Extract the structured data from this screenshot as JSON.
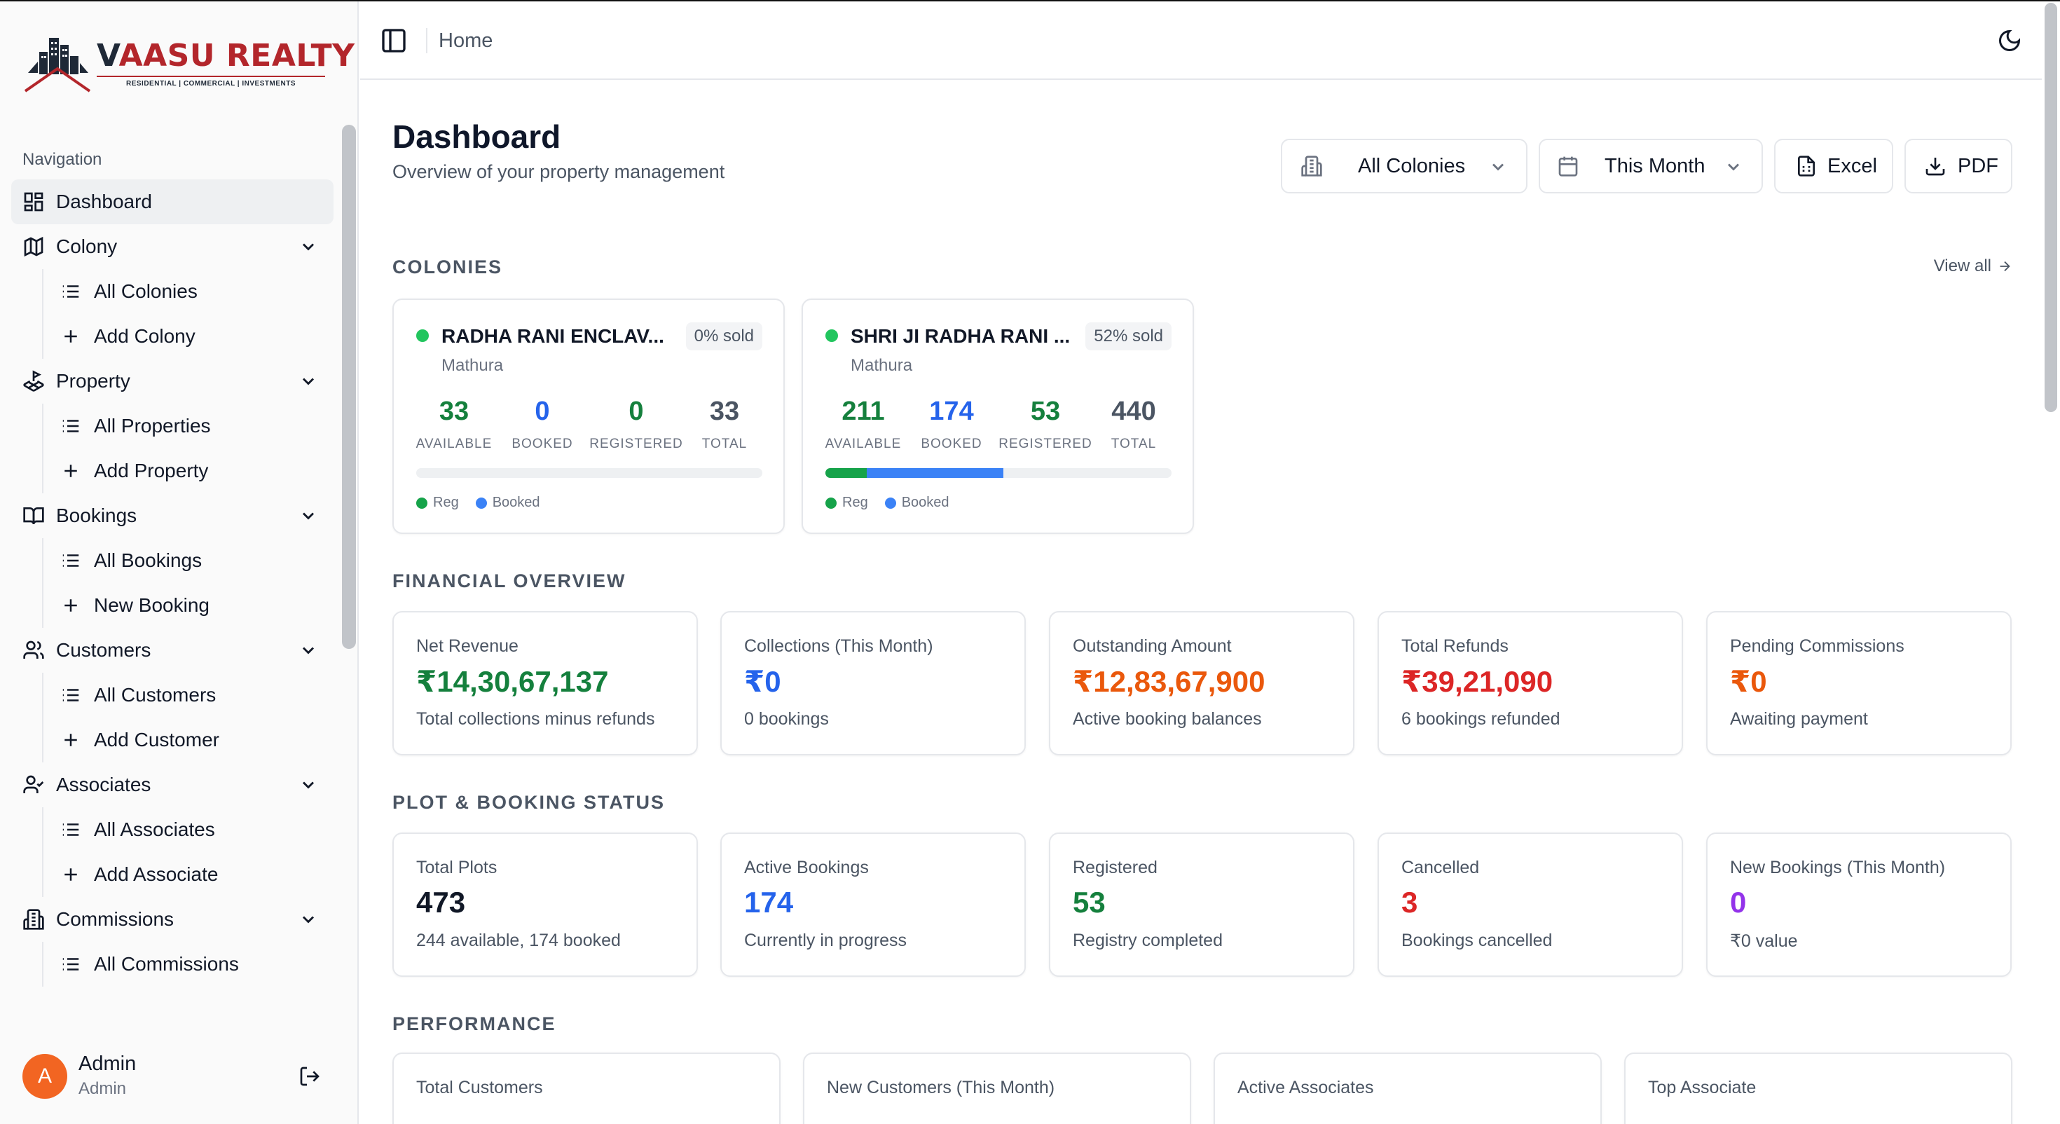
{
  "brand": {
    "name_v": "V",
    "name_rest": "AASU REALTY",
    "tagline": "RESIDENTIAL | COMMERCIAL | INVESTMENTS",
    "mark": "VA"
  },
  "sidebar": {
    "heading": "Navigation",
    "items": [
      {
        "label": "Dashboard",
        "icon": "layout-dashboard-icon"
      },
      {
        "label": "Colony",
        "icon": "map-icon",
        "children": [
          "All Colonies",
          "Add Colony"
        ]
      },
      {
        "label": "Property",
        "icon": "land-plot-icon",
        "children": [
          "All Properties",
          "Add Property"
        ]
      },
      {
        "label": "Bookings",
        "icon": "book-open-icon",
        "children": [
          "All Bookings",
          "New Booking"
        ]
      },
      {
        "label": "Customers",
        "icon": "users-icon",
        "children": [
          "All Customers",
          "Add Customer"
        ]
      },
      {
        "label": "Associates",
        "icon": "user-check-icon",
        "children": [
          "All Associates",
          "Add Associate"
        ]
      },
      {
        "label": "Commissions",
        "icon": "building-icon",
        "children": [
          "All Commissions"
        ]
      }
    ],
    "user": {
      "initial": "A",
      "name": "Admin",
      "role": "Admin"
    }
  },
  "header": {
    "breadcrumb": "Home"
  },
  "page": {
    "title": "Dashboard",
    "subtitle": "Overview of your property management",
    "filters": {
      "colony": "All Colonies",
      "period": "This Month"
    },
    "exports": {
      "excel": "Excel",
      "pdf": "PDF"
    }
  },
  "sections": {
    "colonies": "COLONIES",
    "view_all": "View all",
    "financial": "FINANCIAL OVERVIEW",
    "plot_status": "PLOT & BOOKING STATUS",
    "performance": "PERFORMANCE"
  },
  "stat_labels": {
    "available": "AVAILABLE",
    "booked": "BOOKED",
    "registered": "REGISTERED",
    "total": "TOTAL"
  },
  "legend": {
    "reg": "Reg",
    "booked": "Booked"
  },
  "colonies": [
    {
      "name": "RADHA RANI ENCLAV...",
      "badge": "0% sold",
      "city": "Mathura",
      "available": "33",
      "booked": "0",
      "registered": "0",
      "total": "33",
      "reg_fraction": 0,
      "booked_fraction": 0
    },
    {
      "name": "SHRI JI RADHA RANI ...",
      "badge": "52% sold",
      "city": "Mathura",
      "available": "211",
      "booked": "174",
      "registered": "53",
      "total": "440",
      "reg_fraction": 0.12,
      "booked_fraction": 0.395
    }
  ],
  "financial": [
    {
      "label": "Net Revenue",
      "value": "₹14,30,67,137",
      "sub": "Total collections minus refunds",
      "color": "#15803d"
    },
    {
      "label": "Collections (This Month)",
      "value": "₹0",
      "sub": "0 bookings",
      "color": "#2563eb"
    },
    {
      "label": "Outstanding Amount",
      "value": "₹12,83,67,900",
      "sub": "Active booking balances",
      "color": "#ea580c"
    },
    {
      "label": "Total Refunds",
      "value": "₹39,21,090",
      "sub": "6 bookings refunded",
      "color": "#dc2626"
    },
    {
      "label": "Pending Commissions",
      "value": "₹0",
      "sub": "Awaiting payment",
      "color": "#ea580c"
    }
  ],
  "plot_status": [
    {
      "label": "Total Plots",
      "value": "473",
      "sub": "244 available, 174 booked",
      "color": "#111827"
    },
    {
      "label": "Active Bookings",
      "value": "174",
      "sub": "Currently in progress",
      "color": "#2563eb"
    },
    {
      "label": "Registered",
      "value": "53",
      "sub": "Registry completed",
      "color": "#15803d"
    },
    {
      "label": "Cancelled",
      "value": "3",
      "sub": "Bookings cancelled",
      "color": "#dc2626"
    },
    {
      "label": "New Bookings (This Month)",
      "value": "0",
      "sub": "₹0 value",
      "color": "#9333ea"
    }
  ],
  "performance": [
    {
      "label": "Total Customers"
    },
    {
      "label": "New Customers (This Month)"
    },
    {
      "label": "Active Associates"
    },
    {
      "label": "Top Associate"
    }
  ]
}
